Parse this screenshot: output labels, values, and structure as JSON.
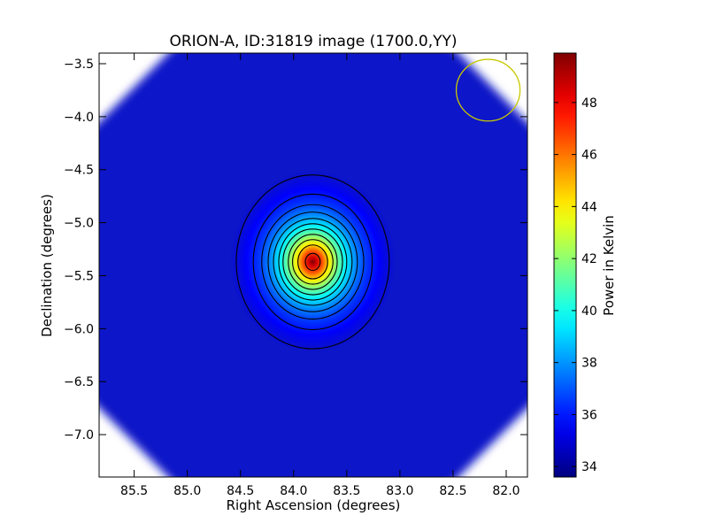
{
  "chart_data": {
    "type": "heatmap",
    "title": "ORION-A, ID:31819 image (1700.0,YY)",
    "xlabel": "Right Ascension (degrees)",
    "ylabel": "Declination (degrees)",
    "colorbar_label": "Power in Kelvin",
    "colormap": "jet",
    "x_axis_reversed": true,
    "xlim": [
      85.83,
      81.8
    ],
    "ylim": [
      -7.4,
      -3.4
    ],
    "x_ticks": [
      85.5,
      85.0,
      84.5,
      84.0,
      83.5,
      83.0,
      82.5,
      82.0
    ],
    "x_tick_labels": [
      "85.5",
      "85.0",
      "84.5",
      "84.0",
      "83.5",
      "83.0",
      "82.5",
      "82.0"
    ],
    "y_ticks": [
      -3.5,
      -4.0,
      -4.5,
      -5.0,
      -5.5,
      -6.0,
      -6.5,
      -7.0
    ],
    "y_tick_labels": [
      "−3.5",
      "−4.0",
      "−4.5",
      "−5.0",
      "−5.5",
      "−6.0",
      "−6.5",
      "−7.0"
    ],
    "colorbar_range": [
      33.6,
      49.9
    ],
    "colorbar_ticks": [
      34,
      36,
      38,
      40,
      42,
      44,
      46,
      48
    ],
    "colorbar_tick_labels": [
      "34",
      "36",
      "38",
      "40",
      "42",
      "44",
      "46",
      "48"
    ],
    "source": {
      "ra": 83.82,
      "dec": -5.37,
      "peak_kelvin": 49.9,
      "background_kelvin": 35.2
    },
    "contour_radii_deg": [
      [
        0.72,
        0.82
      ],
      [
        0.56,
        0.64
      ],
      [
        0.48,
        0.54
      ],
      [
        0.42,
        0.47
      ],
      [
        0.37,
        0.41
      ],
      [
        0.32,
        0.36
      ],
      [
        0.28,
        0.31
      ],
      [
        0.23,
        0.26
      ],
      [
        0.19,
        0.21
      ],
      [
        0.14,
        0.16
      ],
      [
        0.07,
        0.08
      ]
    ],
    "beam": {
      "ra": 82.17,
      "dec": -3.75,
      "radius_deg": 0.3,
      "color": "#c8c800"
    },
    "coverage": "octagon",
    "grid": false
  }
}
